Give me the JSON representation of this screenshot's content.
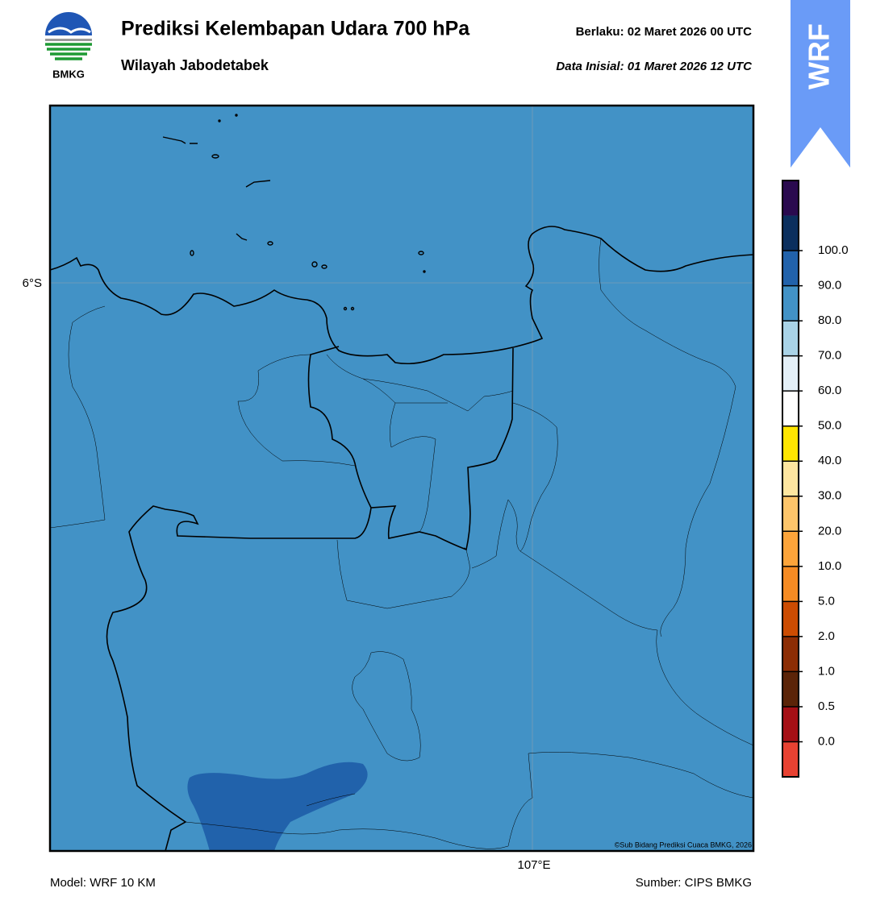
{
  "header": {
    "title": "Prediksi Kelembapan Udara 700 hPa",
    "subtitle": "Wilayah Jabodetabek",
    "valid": "Berlaku:  02 Maret 2026 00 UTC",
    "initial": "Data Inisial:  01 Maret 2026 12 UTC"
  },
  "logo": {
    "text": "BMKG"
  },
  "badge": {
    "text": "WRF"
  },
  "map": {
    "lat_label": "6°S",
    "lon_label": "107°E",
    "credit": "©Sub Bidang Prediksi Cuaca BMKG, 2026",
    "fill": "#4292c6",
    "blob": "#2162ab"
  },
  "colorbar": {
    "colors": [
      "#e84232",
      "#a50f15",
      "#5b2408",
      "#8c2d04",
      "#cc4c02",
      "#f58b23",
      "#fca43a",
      "#fdc56a",
      "#fee6a0",
      "#ffe600",
      "#ffffff",
      "#e3eff7",
      "#a9d3e7",
      "#4292c6",
      "#2162ab",
      "#0b2f5e",
      "#2a0a4f"
    ],
    "labels": [
      "0.0",
      "0.5",
      "1.0",
      "2.0",
      "5.0",
      "10.0",
      "20.0",
      "30.0",
      "40.0",
      "50.0",
      "60.0",
      "70.0",
      "80.0",
      "90.0",
      "100.0"
    ]
  },
  "footer": {
    "model": "Model: WRF 10 KM",
    "source": "Sumber: CIPS BMKG"
  }
}
